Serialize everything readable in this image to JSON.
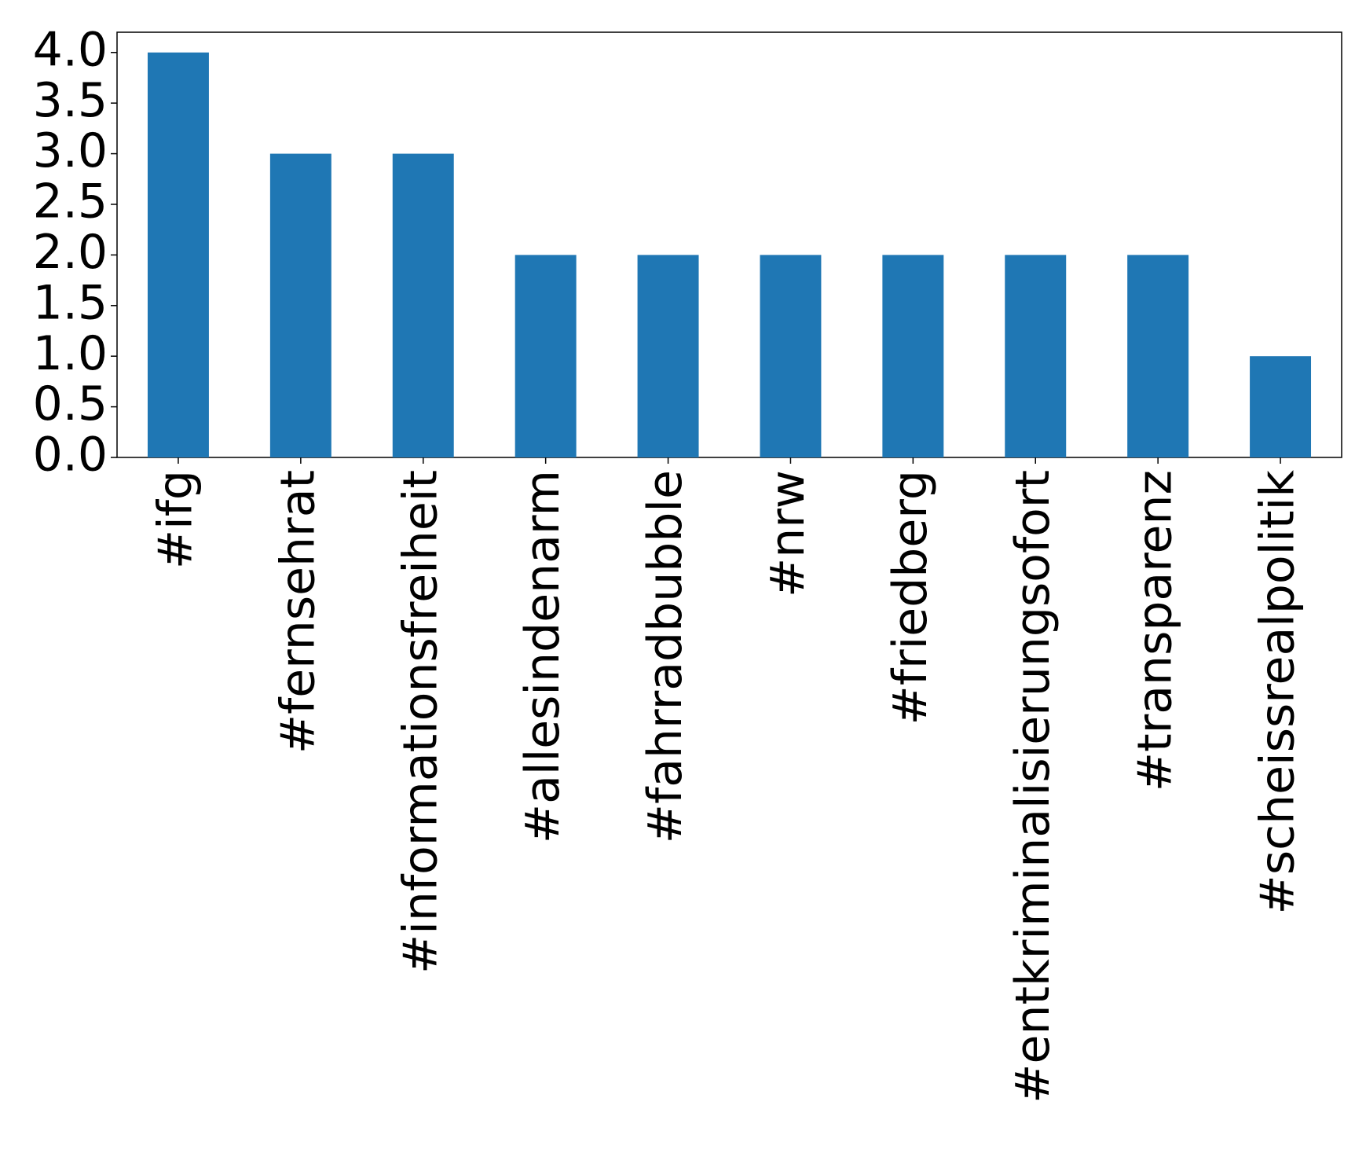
{
  "chart_data": {
    "type": "bar",
    "categories": [
      "#ifg",
      "#fernsehrat",
      "#informationsfreiheit",
      "#allesindenarm",
      "#fahrradbubble",
      "#nrw",
      "#friedberg",
      "#entkriminalisierungsofort",
      "#transparenz",
      "#scheissrealpolitik"
    ],
    "values": [
      4,
      3,
      3,
      2,
      2,
      2,
      2,
      2,
      2,
      1
    ],
    "color": "#1f77b4",
    "ylim": [
      0,
      4.2
    ],
    "yticks": [
      {
        "value": 0,
        "label": "0.0"
      },
      {
        "value": 0.5,
        "label": "0.5"
      },
      {
        "value": 1,
        "label": "1.0"
      },
      {
        "value": 1.5,
        "label": "1.5"
      },
      {
        "value": 2,
        "label": "2.0"
      },
      {
        "value": 2.5,
        "label": "2.5"
      },
      {
        "value": 3,
        "label": "3.0"
      },
      {
        "value": 3.5,
        "label": "3.5"
      },
      {
        "value": 4,
        "label": "4.0"
      }
    ],
    "grid": false
  }
}
